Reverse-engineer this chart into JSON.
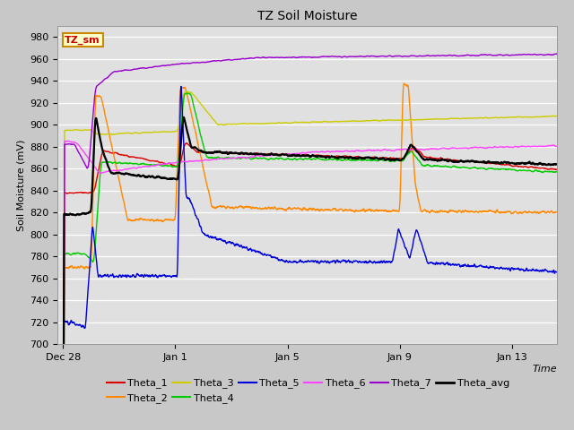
{
  "title": "TZ Soil Moisture",
  "xlabel": "Time",
  "ylabel": "Soil Moisture (mV)",
  "ylim": [
    700,
    990
  ],
  "yticks": [
    700,
    720,
    740,
    760,
    780,
    800,
    820,
    840,
    860,
    880,
    900,
    920,
    940,
    960,
    980
  ],
  "fig_bg_color": "#c8c8c8",
  "plot_bg_color": "#e0e0e0",
  "legend_label": "TZ_sm",
  "legend_bg": "#ffffcc",
  "legend_border": "#cc8800",
  "series_colors": {
    "Theta_1": "#dd0000",
    "Theta_2": "#ff8800",
    "Theta_3": "#cccc00",
    "Theta_4": "#00cc00",
    "Theta_5": "#0000dd",
    "Theta_6": "#ff44ff",
    "Theta_7": "#9900cc",
    "Theta_avg": "#000000"
  },
  "tick_dates": [
    "Dec 28",
    "Jan 1",
    "Jan 5",
    "Jan 9",
    "Jan 13"
  ],
  "xtick_positions": [
    0,
    4,
    8,
    12,
    16
  ]
}
